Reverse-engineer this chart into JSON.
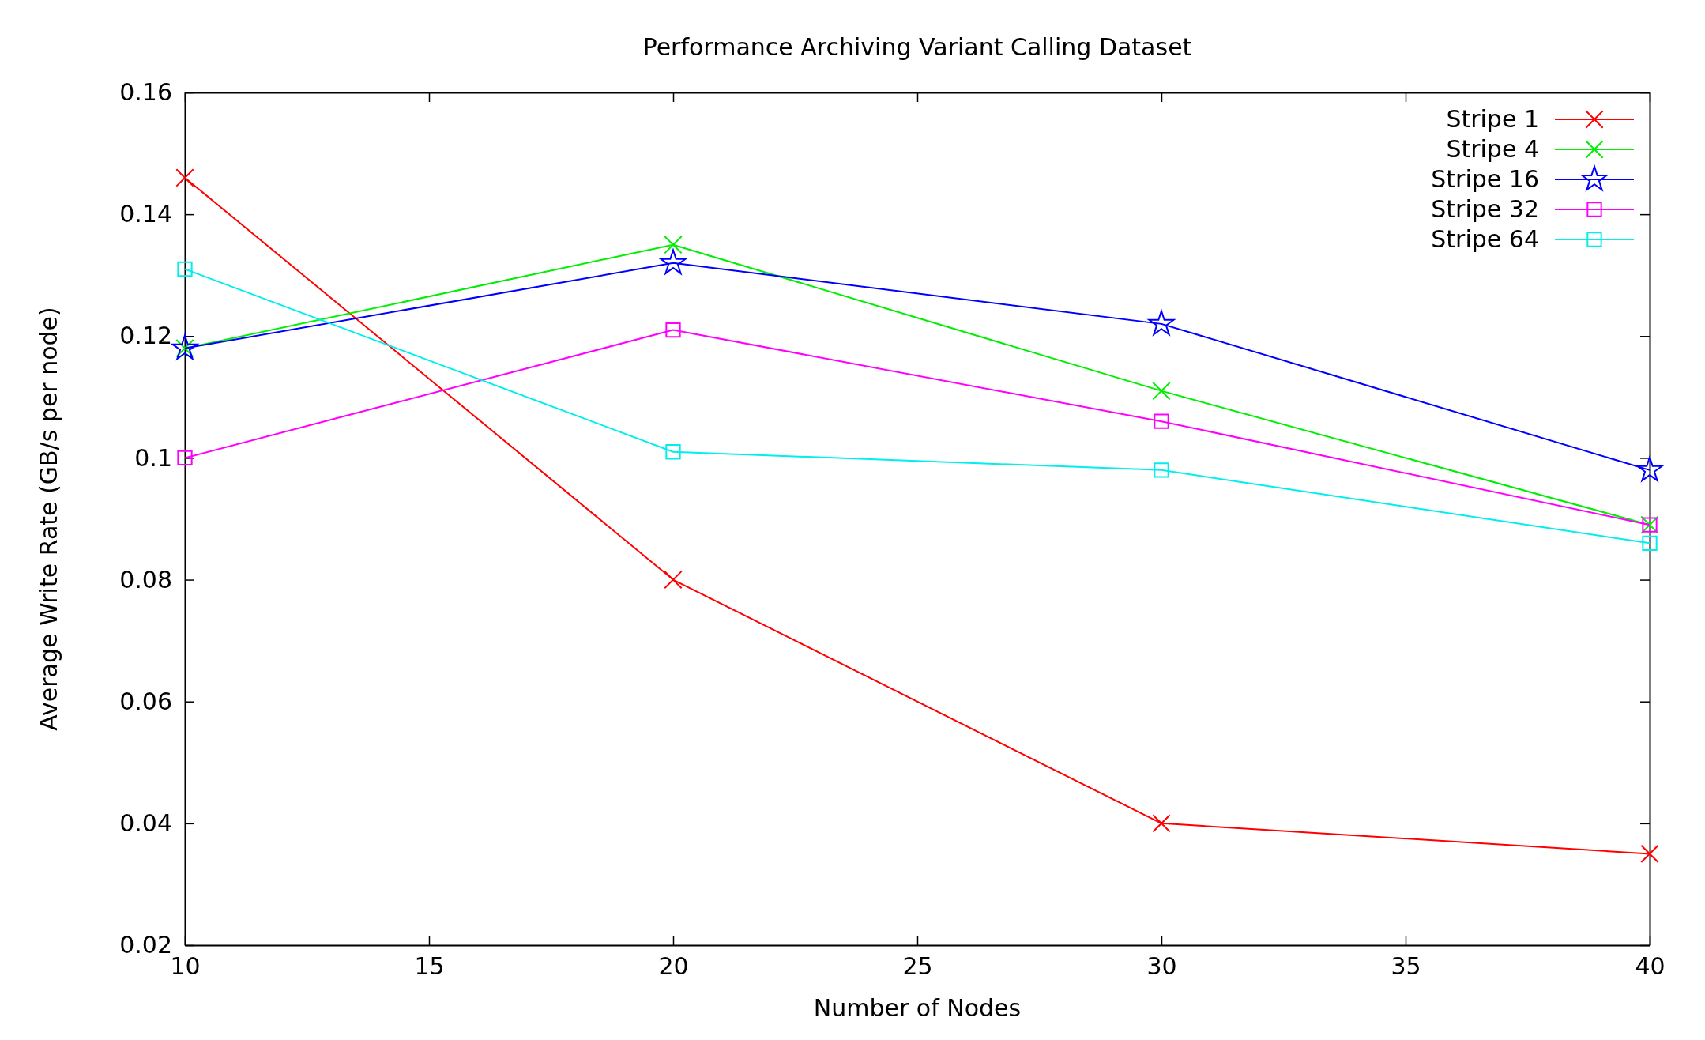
{
  "chart_data": {
    "type": "line",
    "title": "Performance Archiving Variant Calling Dataset",
    "xlabel": "Number of Nodes",
    "ylabel": "Average Write Rate (GB/s per node)",
    "x": [
      10,
      20,
      30,
      40
    ],
    "series": [
      {
        "name": "Stripe 1",
        "color": "#ff0000",
        "marker": "cross",
        "values": [
          0.146,
          0.08,
          0.04,
          0.035
        ]
      },
      {
        "name": "Stripe 4",
        "color": "#00ee00",
        "marker": "cross",
        "values": [
          0.118,
          0.135,
          0.111,
          0.089
        ]
      },
      {
        "name": "Stripe 16",
        "color": "#0000ff",
        "marker": "star",
        "values": [
          0.118,
          0.132,
          0.122,
          0.098
        ]
      },
      {
        "name": "Stripe 32",
        "color": "#ff00ff",
        "marker": "square",
        "values": [
          0.1,
          0.121,
          0.106,
          0.089
        ]
      },
      {
        "name": "Stripe 64",
        "color": "#00eeee",
        "marker": "square",
        "values": [
          0.131,
          0.101,
          0.098,
          0.086
        ]
      }
    ],
    "xlim": [
      10,
      40
    ],
    "xticks": [
      10,
      15,
      20,
      25,
      30,
      35,
      40
    ],
    "ylim": [
      0.02,
      0.16
    ],
    "yticks": [
      {
        "value": 0.02,
        "label": "0.02"
      },
      {
        "value": 0.04,
        "label": "0.04"
      },
      {
        "value": 0.06,
        "label": "0.06"
      },
      {
        "value": 0.08,
        "label": "0.08"
      },
      {
        "value": 0.1,
        "label": "0.1"
      },
      {
        "value": 0.12,
        "label": "0.12"
      },
      {
        "value": 0.14,
        "label": "0.14"
      },
      {
        "value": 0.16,
        "label": "0.16"
      }
    ],
    "grid": false,
    "legend": "top right",
    "line_style": "solid"
  }
}
